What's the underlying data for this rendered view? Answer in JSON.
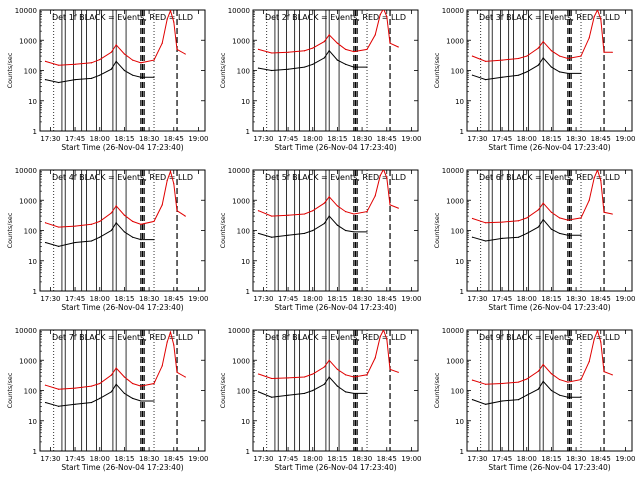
{
  "chart_data": [
    {
      "type": "line",
      "title": "Det 1f BLACK = Events, RED = LLD",
      "xlabel": "Start Time (26-Nov-04 17:23:40)",
      "ylabel": "Counts/sec",
      "yscale": "log",
      "ylim": [
        1,
        10000
      ],
      "x_tick_labels": [
        "17:30",
        "17:45",
        "18:00",
        "18:15",
        "18:30",
        "18:45",
        "19:00"
      ],
      "y_tick_labels": [
        "1",
        "10",
        "100",
        "1000",
        "10000"
      ],
      "series": [
        {
          "name": "Events",
          "color": "#000000",
          "x": [
            "17:27",
            "17:35",
            "17:45",
            "17:55",
            "18:00",
            "18:07",
            "18:10",
            "18:15",
            "18:20",
            "18:25",
            "18:33"
          ],
          "y": [
            50,
            40,
            50,
            55,
            70,
            110,
            200,
            100,
            70,
            60,
            60
          ]
        },
        {
          "name": "LLD",
          "color": "#e00000",
          "x": [
            "17:27",
            "17:35",
            "17:45",
            "17:55",
            "18:00",
            "18:07",
            "18:10",
            "18:15",
            "18:20",
            "18:25",
            "18:33",
            "18:38",
            "18:41",
            "18:43",
            "18:45",
            "18:47",
            "18:52"
          ],
          "y": [
            200,
            150,
            160,
            180,
            230,
            400,
            700,
            350,
            220,
            180,
            220,
            800,
            5000,
            9500,
            4000,
            500,
            350
          ]
        }
      ]
    },
    {
      "type": "line",
      "title": "Det 2f BLACK = Events, RED = LLD",
      "xlabel": "Start Time (26-Nov-04 17:23:40)",
      "ylabel": "Counts/sec",
      "yscale": "log",
      "ylim": [
        1,
        10000
      ],
      "x_tick_labels": [
        "17:30",
        "17:45",
        "18:00",
        "18:15",
        "18:30",
        "18:45",
        "19:00"
      ],
      "y_tick_labels": [
        "1",
        "10",
        "100",
        "1000",
        "10000"
      ],
      "series": [
        {
          "name": "Events",
          "color": "#000000",
          "x": [
            "17:27",
            "17:35",
            "17:45",
            "17:55",
            "18:00",
            "18:07",
            "18:10",
            "18:15",
            "18:20",
            "18:25",
            "18:33"
          ],
          "y": [
            120,
            100,
            110,
            130,
            160,
            260,
            450,
            220,
            160,
            130,
            130
          ]
        },
        {
          "name": "LLD",
          "color": "#e00000",
          "x": [
            "17:27",
            "17:35",
            "17:45",
            "17:55",
            "18:00",
            "18:07",
            "18:10",
            "18:15",
            "18:20",
            "18:25",
            "18:33",
            "18:38",
            "18:41",
            "18:43",
            "18:45",
            "18:47",
            "18:52"
          ],
          "y": [
            500,
            380,
            400,
            450,
            550,
            900,
            1500,
            800,
            500,
            420,
            500,
            1500,
            7000,
            11000,
            6000,
            800,
            600
          ]
        }
      ]
    },
    {
      "type": "line",
      "title": "Det 3f BLACK = Events, RED = LLD",
      "xlabel": "Start Time (26-Nov-04 17:23:40)",
      "ylabel": "Counts/sec",
      "yscale": "log",
      "ylim": [
        1,
        10000
      ],
      "x_tick_labels": [
        "17:30",
        "17:45",
        "18:00",
        "18:15",
        "18:30",
        "18:45",
        "19:00"
      ],
      "y_tick_labels": [
        "1",
        "10",
        "100",
        "1000",
        "10000"
      ],
      "series": [
        {
          "name": "Events",
          "color": "#000000",
          "x": [
            "17:27",
            "17:35",
            "17:45",
            "17:55",
            "18:00",
            "18:07",
            "18:10",
            "18:15",
            "18:20",
            "18:25",
            "18:33"
          ],
          "y": [
            70,
            50,
            60,
            70,
            90,
            150,
            260,
            130,
            90,
            80,
            80
          ]
        },
        {
          "name": "LLD",
          "color": "#e00000",
          "x": [
            "17:27",
            "17:35",
            "17:45",
            "17:55",
            "18:00",
            "18:07",
            "18:10",
            "18:15",
            "18:20",
            "18:25",
            "18:33",
            "18:38",
            "18:41",
            "18:43",
            "18:45",
            "18:47",
            "18:52"
          ],
          "y": [
            300,
            200,
            220,
            250,
            300,
            550,
            900,
            450,
            300,
            250,
            300,
            1200,
            6000,
            10000,
            5000,
            400,
            400
          ]
        }
      ]
    },
    {
      "type": "line",
      "title": "Det 4f BLACK = Events, RED = LLD",
      "xlabel": "Start Time (26-Nov-04 17:23:40)",
      "ylabel": "Counts/sec",
      "yscale": "log",
      "ylim": [
        1,
        10000
      ],
      "x_tick_labels": [
        "17:30",
        "17:45",
        "18:00",
        "18:15",
        "18:30",
        "18:45",
        "19:00"
      ],
      "y_tick_labels": [
        "1",
        "10",
        "100",
        "1000",
        "10000"
      ],
      "series": [
        {
          "name": "Events",
          "color": "#000000",
          "x": [
            "17:27",
            "17:35",
            "17:45",
            "17:55",
            "18:00",
            "18:07",
            "18:10",
            "18:15",
            "18:20",
            "18:25",
            "18:33"
          ],
          "y": [
            40,
            30,
            40,
            45,
            60,
            100,
            180,
            90,
            60,
            50,
            50
          ]
        },
        {
          "name": "LLD",
          "color": "#e00000",
          "x": [
            "17:27",
            "17:35",
            "17:45",
            "17:55",
            "18:00",
            "18:07",
            "18:10",
            "18:15",
            "18:20",
            "18:25",
            "18:33",
            "18:38",
            "18:41",
            "18:43",
            "18:45",
            "18:47",
            "18:52"
          ],
          "y": [
            180,
            130,
            140,
            160,
            200,
            380,
            650,
            320,
            200,
            160,
            200,
            700,
            4500,
            9000,
            3500,
            450,
            300
          ]
        }
      ]
    },
    {
      "type": "line",
      "title": "Det 5f BLACK = Events, RED = LLD",
      "xlabel": "Start Time (26-Nov-04 17:23:40)",
      "ylabel": "Counts/sec",
      "yscale": "log",
      "ylim": [
        1,
        10000
      ],
      "x_tick_labels": [
        "17:30",
        "17:45",
        "18:00",
        "18:15",
        "18:30",
        "18:45",
        "19:00"
      ],
      "y_tick_labels": [
        "1",
        "10",
        "100",
        "1000",
        "10000"
      ],
      "series": [
        {
          "name": "Events",
          "color": "#000000",
          "x": [
            "17:27",
            "17:35",
            "17:45",
            "17:55",
            "18:00",
            "18:07",
            "18:10",
            "18:15",
            "18:20",
            "18:25",
            "18:33"
          ],
          "y": [
            80,
            60,
            70,
            80,
            100,
            170,
            300,
            150,
            100,
            90,
            90
          ]
        },
        {
          "name": "LLD",
          "color": "#e00000",
          "x": [
            "17:27",
            "17:35",
            "17:45",
            "17:55",
            "18:00",
            "18:07",
            "18:10",
            "18:15",
            "18:20",
            "18:25",
            "18:33",
            "18:38",
            "18:41",
            "18:43",
            "18:45",
            "18:47",
            "18:52"
          ],
          "y": [
            450,
            300,
            320,
            350,
            450,
            800,
            1300,
            650,
            420,
            350,
            420,
            1400,
            6500,
            10500,
            5500,
            700,
            550
          ]
        }
      ]
    },
    {
      "type": "line",
      "title": "Det 6f BLACK = Events, RED = LLD",
      "xlabel": "Start Time (26-Nov-04 17:23:40)",
      "ylabel": "Counts/sec",
      "yscale": "log",
      "ylim": [
        1,
        10000
      ],
      "x_tick_labels": [
        "17:30",
        "17:45",
        "18:00",
        "18:15",
        "18:30",
        "18:45",
        "19:00"
      ],
      "y_tick_labels": [
        "1",
        "10",
        "100",
        "1000",
        "10000"
      ],
      "series": [
        {
          "name": "Events",
          "color": "#000000",
          "x": [
            "17:27",
            "17:35",
            "17:45",
            "17:55",
            "18:00",
            "18:07",
            "18:10",
            "18:15",
            "18:20",
            "18:25",
            "18:33"
          ],
          "y": [
            60,
            45,
            55,
            60,
            80,
            130,
            230,
            110,
            80,
            70,
            70
          ]
        },
        {
          "name": "LLD",
          "color": "#e00000",
          "x": [
            "17:27",
            "17:35",
            "17:45",
            "17:55",
            "18:00",
            "18:07",
            "18:10",
            "18:15",
            "18:20",
            "18:25",
            "18:33",
            "18:38",
            "18:41",
            "18:43",
            "18:45",
            "18:47",
            "18:52"
          ],
          "y": [
            250,
            180,
            190,
            210,
            260,
            480,
            800,
            400,
            260,
            220,
            260,
            1000,
            5500,
            10000,
            4500,
            400,
            350
          ]
        }
      ]
    },
    {
      "type": "line",
      "title": "Det 7f BLACK = Events, RED = LLD",
      "xlabel": "Start Time (26-Nov-04 17:23:40)",
      "ylabel": "Counts/sec",
      "yscale": "log",
      "ylim": [
        1,
        10000
      ],
      "x_tick_labels": [
        "17:30",
        "17:45",
        "18:00",
        "18:15",
        "18:30",
        "18:45",
        "19:00"
      ],
      "y_tick_labels": [
        "1",
        "10",
        "100",
        "1000",
        "10000"
      ],
      "series": [
        {
          "name": "Events",
          "color": "#000000",
          "x": [
            "17:27",
            "17:35",
            "17:45",
            "17:55",
            "18:00",
            "18:07",
            "18:10",
            "18:15",
            "18:20",
            "18:25",
            "18:33"
          ],
          "y": [
            40,
            30,
            35,
            40,
            55,
            90,
            160,
            80,
            55,
            45,
            45
          ]
        },
        {
          "name": "LLD",
          "color": "#e00000",
          "x": [
            "17:27",
            "17:35",
            "17:45",
            "17:55",
            "18:00",
            "18:07",
            "18:10",
            "18:15",
            "18:20",
            "18:25",
            "18:33",
            "18:38",
            "18:41",
            "18:43",
            "18:45",
            "18:47",
            "18:52"
          ],
          "y": [
            150,
            110,
            120,
            140,
            170,
            320,
            550,
            280,
            170,
            140,
            170,
            650,
            4000,
            8500,
            3200,
            400,
            280
          ]
        }
      ]
    },
    {
      "type": "line",
      "title": "Det 8f BLACK = Events, RED = LLD",
      "xlabel": "Start Time (26-Nov-04 17:23:40)",
      "ylabel": "Counts/sec",
      "yscale": "log",
      "ylim": [
        1,
        10000
      ],
      "x_tick_labels": [
        "17:30",
        "17:45",
        "18:00",
        "18:15",
        "18:30",
        "18:45",
        "19:00"
      ],
      "y_tick_labels": [
        "1",
        "10",
        "100",
        "1000",
        "10000"
      ],
      "series": [
        {
          "name": "Events",
          "color": "#000000",
          "x": [
            "17:27",
            "17:35",
            "17:45",
            "17:55",
            "18:00",
            "18:07",
            "18:10",
            "18:15",
            "18:20",
            "18:25",
            "18:33"
          ],
          "y": [
            90,
            60,
            70,
            80,
            100,
            160,
            280,
            140,
            90,
            80,
            80
          ]
        },
        {
          "name": "LLD",
          "color": "#e00000",
          "x": [
            "17:27",
            "17:35",
            "17:45",
            "17:55",
            "18:00",
            "18:07",
            "18:10",
            "18:15",
            "18:20",
            "18:25",
            "18:33",
            "18:38",
            "18:41",
            "18:43",
            "18:45",
            "18:47",
            "18:52"
          ],
          "y": [
            350,
            250,
            260,
            280,
            350,
            600,
            1000,
            500,
            330,
            280,
            330,
            1200,
            6000,
            10000,
            5000,
            500,
            400
          ]
        }
      ]
    },
    {
      "type": "line",
      "title": "Det 9f BLACK = Events, RED = LLD",
      "xlabel": "Start Time (26-Nov-04 17:23:40)",
      "ylabel": "Counts/sec",
      "yscale": "log",
      "ylim": [
        1,
        10000
      ],
      "x_tick_labels": [
        "17:30",
        "17:45",
        "18:00",
        "18:15",
        "18:30",
        "18:45",
        "19:00"
      ],
      "y_tick_labels": [
        "1",
        "10",
        "100",
        "1000",
        "10000"
      ],
      "series": [
        {
          "name": "Events",
          "color": "#000000",
          "x": [
            "17:27",
            "17:35",
            "17:45",
            "17:55",
            "18:00",
            "18:07",
            "18:10",
            "18:15",
            "18:20",
            "18:25",
            "18:33"
          ],
          "y": [
            50,
            35,
            45,
            50,
            70,
            110,
            200,
            100,
            70,
            60,
            60
          ]
        },
        {
          "name": "LLD",
          "color": "#e00000",
          "x": [
            "17:27",
            "17:35",
            "17:45",
            "17:55",
            "18:00",
            "18:07",
            "18:10",
            "18:15",
            "18:20",
            "18:25",
            "18:33",
            "18:38",
            "18:41",
            "18:43",
            "18:45",
            "18:47",
            "18:52"
          ],
          "y": [
            220,
            160,
            170,
            190,
            240,
            430,
            720,
            360,
            230,
            190,
            230,
            900,
            5000,
            9500,
            4000,
            420,
            330
          ]
        }
      ]
    }
  ]
}
